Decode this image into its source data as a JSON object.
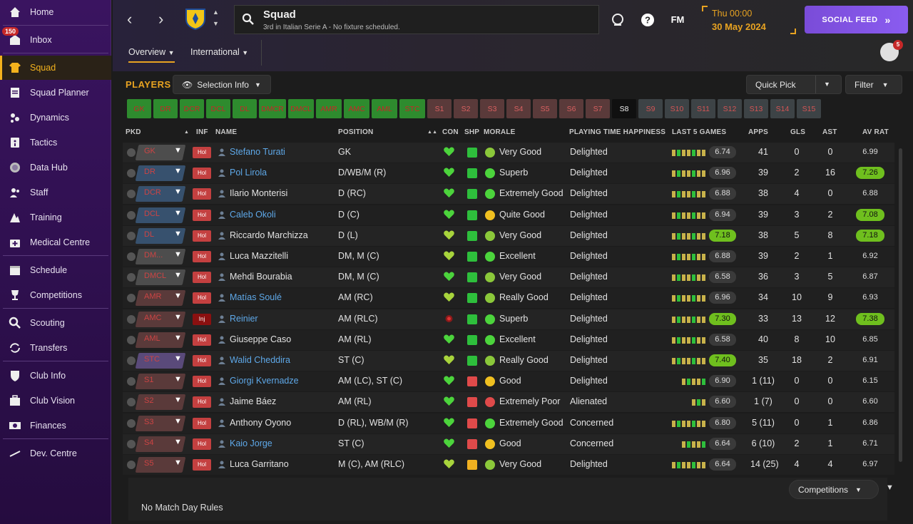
{
  "sidebar": {
    "inbox_badge": "150",
    "items": [
      {
        "label": "Home",
        "icon": "home-icon"
      },
      {
        "label": "Inbox",
        "icon": "inbox-icon"
      },
      {
        "label": "Squad",
        "icon": "shirt-icon"
      },
      {
        "label": "Squad Planner",
        "icon": "clipboard-icon"
      },
      {
        "label": "Dynamics",
        "icon": "dynamics-icon"
      },
      {
        "label": "Tactics",
        "icon": "tactics-icon"
      },
      {
        "label": "Data Hub",
        "icon": "data-hub-icon"
      },
      {
        "label": "Staff",
        "icon": "staff-icon"
      },
      {
        "label": "Training",
        "icon": "training-icon"
      },
      {
        "label": "Medical Centre",
        "icon": "medical-icon"
      },
      {
        "label": "Schedule",
        "icon": "calendar-icon"
      },
      {
        "label": "Competitions",
        "icon": "trophy-icon"
      },
      {
        "label": "Scouting",
        "icon": "scouting-icon"
      },
      {
        "label": "Transfers",
        "icon": "transfers-icon"
      },
      {
        "label": "Club Info",
        "icon": "shield-icon"
      },
      {
        "label": "Club Vision",
        "icon": "briefcase-icon"
      },
      {
        "label": "Finances",
        "icon": "money-icon"
      },
      {
        "label": "Dev. Centre",
        "icon": "dev-centre-icon"
      }
    ]
  },
  "header": {
    "title": "Squad",
    "subtitle": "3rd in Italian Serie A - No fixture scheduled.",
    "fm_label": "FM",
    "time": "Thu 00:00",
    "date": "30 May 2024",
    "social_feed": "SOCIAL FEED",
    "notif_count": "5",
    "tabs": [
      "Overview",
      "International"
    ]
  },
  "toolbar": {
    "players_label": "PLAYERS",
    "selection_info": "Selection Info",
    "quick_pick": "Quick Pick",
    "filter": "Filter",
    "competitions": "Competitions",
    "footer_text": "No Match Day Rules"
  },
  "selections": [
    "GK",
    "DR",
    "DCR",
    "DCL",
    "DL",
    "DMCR",
    "DMCL",
    "AMR",
    "AMC",
    "AML",
    "STC",
    "S1",
    "S2",
    "S3",
    "S4",
    "S5",
    "S6",
    "S7",
    "S8",
    "S9",
    "S10",
    "S11",
    "S12",
    "S13",
    "S14",
    "S15"
  ],
  "columns": [
    "PKD",
    "INF",
    "NAME",
    "POSITION",
    "CON",
    "SHP",
    "MORALE",
    "PLAYING TIME HAPPINESS",
    "LAST 5 GAMES",
    "APPS",
    "GLS",
    "AST",
    "AV RAT"
  ],
  "players": [
    {
      "pkd": "GK",
      "inf": "Hol",
      "name": "Stefano Turati",
      "link": true,
      "position": "GK",
      "morale": "Very Good",
      "happiness": "Delighted",
      "form": "6.74",
      "apps": "41",
      "gls": "0",
      "ast": "0",
      "avrat": "6.99"
    },
    {
      "pkd": "DR",
      "inf": "Hol",
      "name": "Pol Lirola",
      "link": true,
      "position": "D/WB/M (R)",
      "morale": "Superb",
      "happiness": "Delighted",
      "form": "6.96",
      "apps": "39",
      "gls": "2",
      "ast": "16",
      "avrat": "7.26"
    },
    {
      "pkd": "DCR",
      "inf": "Hol",
      "name": "Ilario Monterisi",
      "link": false,
      "position": "D (RC)",
      "morale": "Extremely Good",
      "happiness": "Delighted",
      "form": "6.88",
      "apps": "38",
      "gls": "4",
      "ast": "0",
      "avrat": "6.88"
    },
    {
      "pkd": "DCL",
      "inf": "Hol",
      "name": "Caleb Okoli",
      "link": true,
      "position": "D (C)",
      "morale": "Quite Good",
      "happiness": "Delighted",
      "form": "6.94",
      "apps": "39",
      "gls": "3",
      "ast": "2",
      "avrat": "7.08"
    },
    {
      "pkd": "DL",
      "inf": "Hol",
      "name": "Riccardo Marchizza",
      "link": false,
      "position": "D (L)",
      "morale": "Very Good",
      "happiness": "Delighted",
      "form": "7.18",
      "apps": "38",
      "gls": "5",
      "ast": "8",
      "avrat": "7.18"
    },
    {
      "pkd": "DM...",
      "inf": "Hol",
      "name": "Luca Mazzitelli",
      "link": false,
      "position": "DM, M (C)",
      "morale": "Excellent",
      "happiness": "Delighted",
      "form": "6.88",
      "apps": "39",
      "gls": "2",
      "ast": "1",
      "avrat": "6.92"
    },
    {
      "pkd": "DMCL",
      "inf": "Hol",
      "name": "Mehdi Bourabia",
      "link": false,
      "position": "DM, M (C)",
      "morale": "Very Good",
      "happiness": "Delighted",
      "form": "6.58",
      "apps": "36",
      "gls": "3",
      "ast": "5",
      "avrat": "6.87"
    },
    {
      "pkd": "AMR",
      "inf": "Hol",
      "name": "Matías Soulé",
      "link": true,
      "position": "AM (RC)",
      "morale": "Really Good",
      "happiness": "Delighted",
      "form": "6.96",
      "apps": "34",
      "gls": "10",
      "ast": "9",
      "avrat": "6.93"
    },
    {
      "pkd": "AMC",
      "inf": "Inj",
      "name": "Reinier",
      "link": true,
      "position": "AM (RLC)",
      "morale": "Superb",
      "happiness": "Delighted",
      "form": "7.30",
      "apps": "33",
      "gls": "13",
      "ast": "12",
      "avrat": "7.38"
    },
    {
      "pkd": "AML",
      "inf": "Hol",
      "name": "Giuseppe Caso",
      "link": false,
      "position": "AM (RL)",
      "morale": "Excellent",
      "happiness": "Delighted",
      "form": "6.58",
      "apps": "40",
      "gls": "8",
      "ast": "10",
      "avrat": "6.85"
    },
    {
      "pkd": "STC",
      "inf": "Hol",
      "name": "Walid Cheddira",
      "link": true,
      "position": "ST (C)",
      "morale": "Really Good",
      "happiness": "Delighted",
      "form": "7.40",
      "apps": "35",
      "gls": "18",
      "ast": "2",
      "avrat": "6.91"
    },
    {
      "pkd": "S1",
      "inf": "Hol",
      "name": "Giorgi Kvernadze",
      "link": true,
      "position": "AM (LC), ST (C)",
      "morale": "Good",
      "happiness": "Delighted",
      "form": "6.90",
      "apps": "1 (11)",
      "gls": "0",
      "ast": "0",
      "avrat": "6.15"
    },
    {
      "pkd": "S2",
      "inf": "Hol",
      "name": "Jaime Báez",
      "link": false,
      "position": "AM (RL)",
      "morale": "Extremely Poor",
      "happiness": "Alienated",
      "form": "6.60",
      "apps": "1 (7)",
      "gls": "0",
      "ast": "0",
      "avrat": "6.60"
    },
    {
      "pkd": "S3",
      "inf": "Hol",
      "name": "Anthony Oyono",
      "link": false,
      "position": "D (RL), WB/M (R)",
      "morale": "Extremely Good",
      "happiness": "Concerned",
      "form": "6.80",
      "apps": "5 (11)",
      "gls": "0",
      "ast": "1",
      "avrat": "6.86"
    },
    {
      "pkd": "S4",
      "inf": "Hol",
      "name": "Kaio Jorge",
      "link": true,
      "position": "ST (C)",
      "morale": "Good",
      "happiness": "Concerned",
      "form": "6.64",
      "apps": "6 (10)",
      "gls": "2",
      "ast": "1",
      "avrat": "6.71"
    },
    {
      "pkd": "S5",
      "inf": "Hol",
      "name": "Luca Garritano",
      "link": false,
      "position": "M (C), AM (RLC)",
      "morale": "Very Good",
      "happiness": "Delighted",
      "form": "6.64",
      "apps": "14 (25)",
      "gls": "4",
      "ast": "4",
      "avrat": "6.97"
    }
  ],
  "colors": {
    "accent": "#e8a321",
    "link": "#5ea8e8",
    "good": "#6fbf1e",
    "sidebar": "#3a1460",
    "social": "#8a5cf0"
  }
}
